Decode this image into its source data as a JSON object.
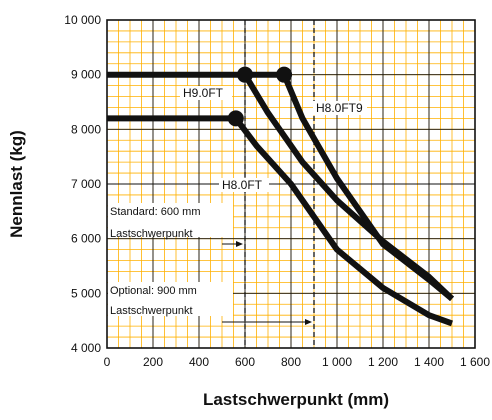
{
  "chart_data": {
    "type": "line",
    "title": "",
    "xlabel": "Lastschwerpunkt (mm)",
    "ylabel": "Nennlast (kg)",
    "xlim": [
      0,
      1600
    ],
    "ylim": [
      4000,
      10000
    ],
    "x_ticks": [
      0,
      200,
      400,
      600,
      800,
      1000,
      1200,
      1400,
      1600
    ],
    "x_tick_labels": [
      "0",
      "200",
      "400",
      "600",
      "800",
      "1 000",
      "1 200",
      "1 400",
      "1 600"
    ],
    "y_ticks": [
      4000,
      5000,
      6000,
      7000,
      8000,
      9000,
      10000
    ],
    "y_tick_labels": [
      "4 000",
      "5 000",
      "6 000",
      "7 000",
      "8 000",
      "9 000",
      "10 000"
    ],
    "grid": true,
    "minor_grid_step": {
      "x": 50,
      "y": 200
    },
    "series": [
      {
        "name": "H8.0FT",
        "marker_at": [
          560,
          8200
        ],
        "points": [
          [
            0,
            8200
          ],
          [
            560,
            8200
          ],
          [
            650,
            7700
          ],
          [
            800,
            7000
          ],
          [
            1000,
            5800
          ],
          [
            1200,
            5100
          ],
          [
            1400,
            4600
          ],
          [
            1500,
            4450
          ]
        ]
      },
      {
        "name": "H9.0FT",
        "marker_at": [
          600,
          9000
        ],
        "points": [
          [
            0,
            9000
          ],
          [
            600,
            9000
          ],
          [
            700,
            8300
          ],
          [
            850,
            7400
          ],
          [
            1000,
            6700
          ],
          [
            1200,
            5950
          ],
          [
            1400,
            5300
          ],
          [
            1500,
            4900
          ]
        ]
      },
      {
        "name": "H8.0FT9",
        "marker_at": [
          770,
          9000
        ],
        "points": [
          [
            600,
            9000
          ],
          [
            770,
            9000
          ],
          [
            850,
            8200
          ],
          [
            1000,
            7100
          ],
          [
            1200,
            5900
          ],
          [
            1400,
            5250
          ],
          [
            1500,
            4900
          ]
        ]
      }
    ],
    "annotations": [
      {
        "text_lines": [
          "Standard: 600 mm",
          "Lastschwerpunkt"
        ],
        "arrow_to_x": 600,
        "dashed_x": 600
      },
      {
        "text_lines": [
          "Optional: 900 mm",
          "Lastschwerpunkt"
        ],
        "arrow_to_x": 900,
        "dashed_x": 900
      }
    ],
    "colors": {
      "grid_minor": "#ffb000",
      "grid_major": "#111111",
      "series": "#111111"
    }
  }
}
